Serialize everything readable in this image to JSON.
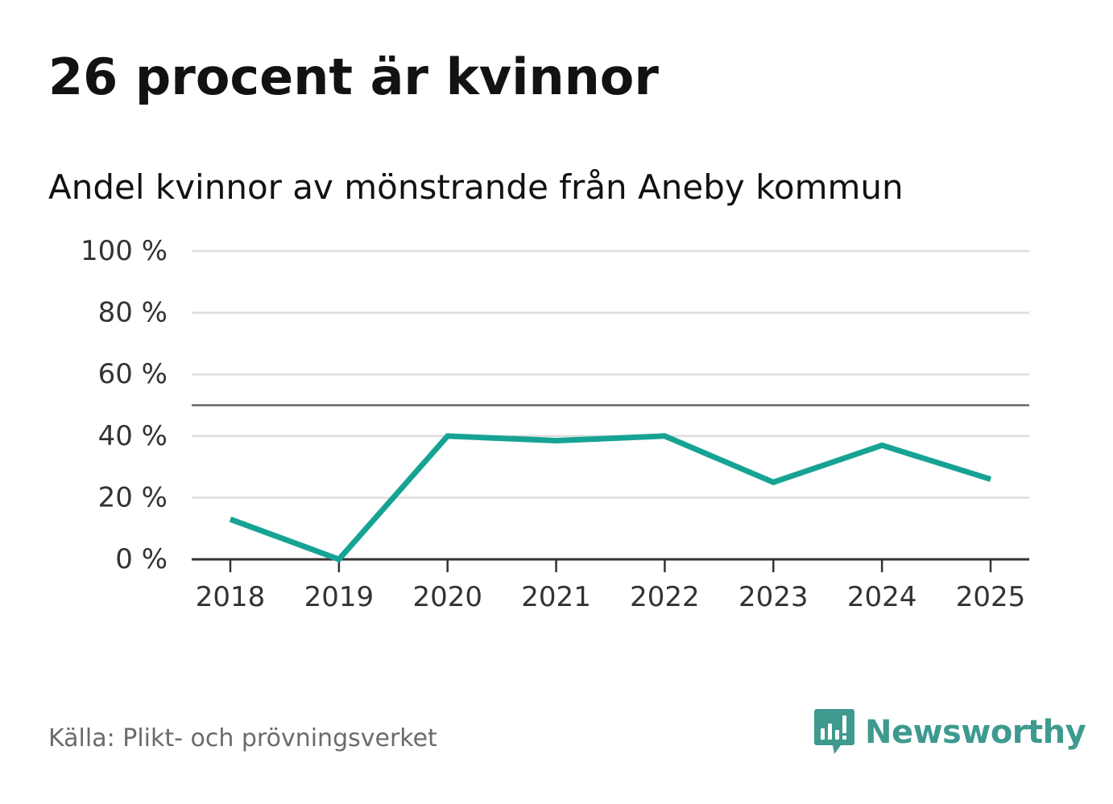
{
  "header": {
    "title": "26 procent är kvinnor",
    "subtitle": "Andel kvinnor av mönstrande från Aneby kommun"
  },
  "footer": {
    "source": "Källa: Plikt- och prövningsverket",
    "brand_name": "Newsworthy",
    "brand_icon": "newsworthy-logo-icon",
    "brand_color": "#3e9a8f"
  },
  "chart_data": {
    "type": "line",
    "x": [
      "2018",
      "2019",
      "2020",
      "2021",
      "2022",
      "2023",
      "2024",
      "2025"
    ],
    "series": [
      {
        "values": [
          13,
          0,
          40,
          38.5,
          40,
          25,
          37,
          26
        ],
        "color": "#16a394"
      }
    ],
    "ylim": [
      0,
      100
    ],
    "yticks": [
      0,
      20,
      40,
      60,
      80,
      100
    ],
    "ytick_labels": [
      "0 %",
      "20 %",
      "40 %",
      "60 %",
      "80 %",
      "100 %"
    ],
    "reference_line": 50,
    "grid": true,
    "grid_color": "#dddddd",
    "axis_color": "#333333",
    "reference_color": "#666666"
  }
}
